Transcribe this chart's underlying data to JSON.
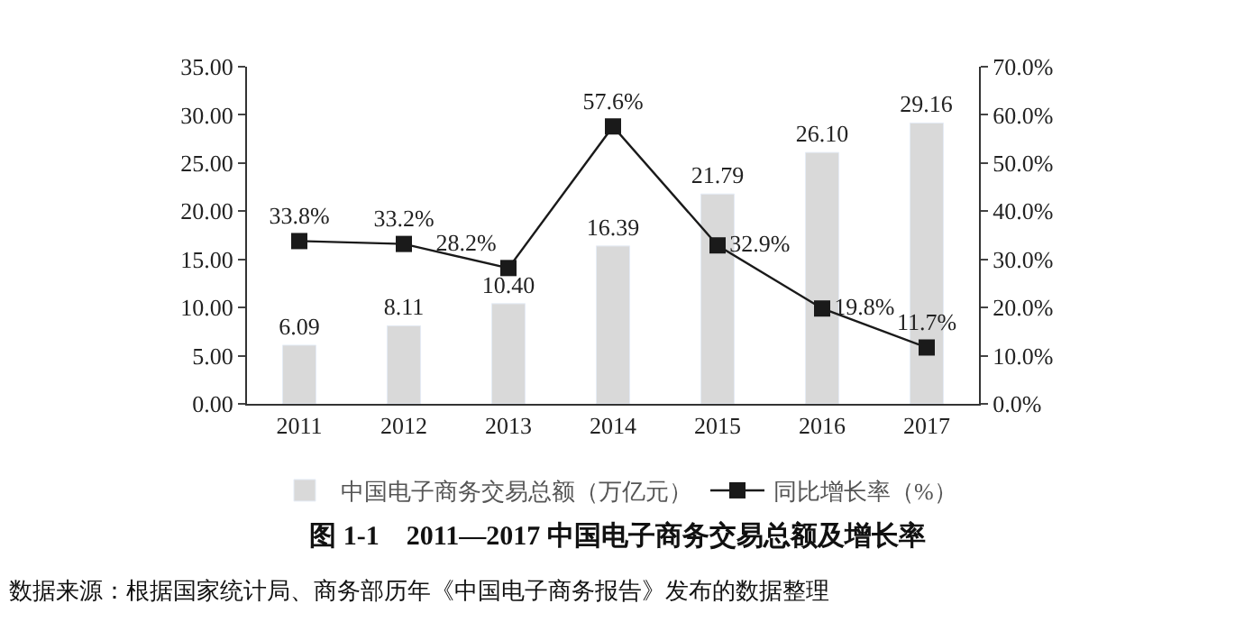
{
  "chart_data": {
    "type": "bar",
    "title": "图 1-1　2011—2017 中国电子商务交易总额及增长率",
    "categories": [
      "2011",
      "2012",
      "2013",
      "2014",
      "2015",
      "2016",
      "2017"
    ],
    "series": [
      {
        "name": "中国电子商务交易总额（万亿元）",
        "color": "#d9d9d9",
        "values": [
          6.09,
          8.11,
          10.4,
          16.39,
          21.79,
          26.1,
          29.16
        ],
        "value_labels": [
          "6.09",
          "8.11",
          "10.40",
          "16.39",
          "21.79",
          "26.10",
          "29.16"
        ]
      },
      {
        "name": "同比增长率（%）",
        "type": "line",
        "axis": "y2",
        "color": "#1a1a1a",
        "marker": "square",
        "values": [
          33.8,
          33.2,
          28.2,
          57.6,
          32.9,
          19.8,
          11.7
        ],
        "value_labels": [
          "33.8%",
          "33.2%",
          "28.2%",
          "57.6%",
          "32.9%",
          "19.8%",
          "11.7%"
        ]
      }
    ],
    "ylim": [
      0,
      35
    ],
    "yticks": [
      {
        "value": 0,
        "label": "0.00"
      },
      {
        "value": 5,
        "label": "5.00"
      },
      {
        "value": 10,
        "label": "10.00"
      },
      {
        "value": 15,
        "label": "15.00"
      },
      {
        "value": 20,
        "label": "20.00"
      },
      {
        "value": 25,
        "label": "25.00"
      },
      {
        "value": 30,
        "label": "30.00"
      },
      {
        "value": 35,
        "label": "35.00"
      }
    ],
    "y2lim": [
      0,
      70
    ],
    "y2ticks": [
      {
        "value": 0,
        "label": "0.0%"
      },
      {
        "value": 10,
        "label": "10.0%"
      },
      {
        "value": 20,
        "label": "20.0%"
      },
      {
        "value": 30,
        "label": "30.0%"
      },
      {
        "value": 40,
        "label": "40.0%"
      },
      {
        "value": 50,
        "label": "50.0%"
      },
      {
        "value": 60,
        "label": "60.0%"
      },
      {
        "value": 70,
        "label": "70.0%"
      }
    ],
    "legend": "bottom",
    "annotations": [
      "数据来源：根据国家统计局、商务部历年《中国电子商务报告》发布的数据整理"
    ]
  }
}
